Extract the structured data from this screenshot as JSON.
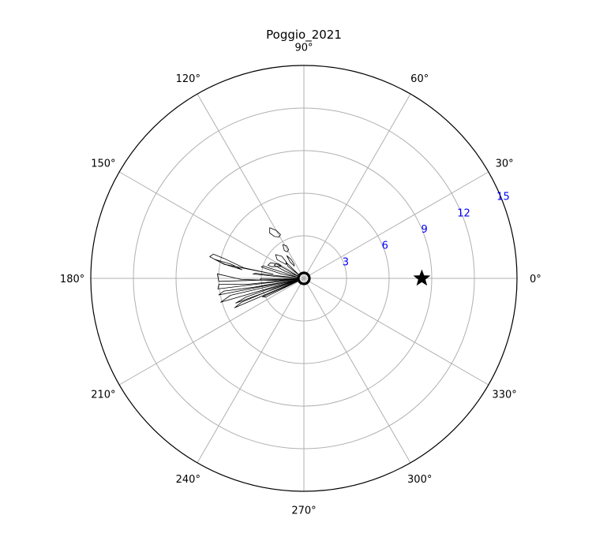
{
  "chart_data": {
    "type": "polar-contour",
    "title": "Poggio_2021",
    "angular_ticks": [
      0,
      30,
      60,
      90,
      120,
      150,
      180,
      210,
      240,
      270,
      300,
      330
    ],
    "angular_tick_labels": [
      "0°",
      "30°",
      "60°",
      "90°",
      "120°",
      "150°",
      "180°",
      "210°",
      "240°",
      "270°",
      "300°",
      "330°"
    ],
    "radial_ticks": [
      3,
      6,
      9,
      12,
      15
    ],
    "radial_tick_labels": [
      "3",
      "6",
      "9",
      "12",
      "15"
    ],
    "radial_label_angle_deg": 22.5,
    "radial_label_color": "#0000ff",
    "rlim": [
      0,
      15
    ],
    "grid": true,
    "markers": [
      {
        "shape": "star",
        "theta_deg": 0,
        "r": 8.3,
        "color": "#000000"
      },
      {
        "shape": "circle",
        "theta_deg": 0,
        "r": 0,
        "color": "#000000"
      }
    ],
    "contours": [
      {
        "name": "upper-lobe",
        "points": [
          [
            125,
            3.6
          ],
          [
            127,
            4.0
          ],
          [
            124,
            4.3
          ],
          [
            120,
            3.9
          ],
          [
            118,
            3.5
          ],
          [
            121,
            3.4
          ],
          [
            125,
            3.6
          ]
        ]
      },
      {
        "name": "lobe-small-1",
        "points": [
          [
            155,
            2.6
          ],
          [
            160,
            2.7
          ],
          [
            160,
            2.4
          ],
          [
            152,
            1.8
          ],
          [
            150,
            2.0
          ],
          [
            155,
            2.6
          ]
        ]
      },
      {
        "name": "lobe-small-2",
        "points": [
          [
            142,
            1.6
          ],
          [
            145,
            2.3
          ],
          [
            140,
            2.6
          ],
          [
            135,
            2.2
          ],
          [
            137,
            1.7
          ],
          [
            142,
            1.6
          ]
        ]
      },
      {
        "name": "lobe-small-3",
        "points": [
          [
            122,
            2.2
          ],
          [
            125,
            2.4
          ],
          [
            122,
            2.8
          ],
          [
            118,
            2.6
          ],
          [
            118,
            2.3
          ],
          [
            122,
            2.2
          ]
        ]
      },
      {
        "name": "lobe-small-4",
        "points": [
          [
            128,
            1.1
          ],
          [
            130,
            1.5
          ],
          [
            127,
            2.0
          ],
          [
            124,
            1.6
          ],
          [
            125,
            1.2
          ],
          [
            128,
            1.1
          ]
        ]
      },
      {
        "name": "mid-lobe",
        "points": [
          [
            172,
            2.2
          ],
          [
            170,
            5.7
          ],
          [
            167,
            6.8
          ],
          [
            165,
            6.6
          ],
          [
            166,
            5.8
          ],
          [
            170,
            4.3
          ],
          [
            172,
            2.2
          ]
        ]
      },
      {
        "name": "mid-lobe-inner",
        "points": [
          [
            172,
            4.4
          ],
          [
            170,
            5.6
          ],
          [
            168,
            6.4
          ],
          [
            169,
            5.2
          ],
          [
            172,
            4.4
          ]
        ]
      },
      {
        "name": "left-lobe-1",
        "points": [
          [
            186,
            0.5
          ],
          [
            182,
            6.0
          ],
          [
            177,
            6.1
          ],
          [
            181,
            4.4
          ],
          [
            185,
            1.8
          ],
          [
            186,
            0.5
          ]
        ]
      },
      {
        "name": "left-lobe-2",
        "points": [
          [
            188,
            0.4
          ],
          [
            187,
            6.1
          ],
          [
            184,
            6.0
          ],
          [
            186,
            4.0
          ],
          [
            188,
            0.4
          ]
        ]
      },
      {
        "name": "left-lobe-3",
        "points": [
          [
            191,
            0.4
          ],
          [
            191,
            6.1
          ],
          [
            189,
            5.7
          ],
          [
            190,
            3.6
          ],
          [
            191,
            0.4
          ]
        ]
      },
      {
        "name": "left-lobe-4",
        "points": [
          [
            194,
            0.4
          ],
          [
            196,
            6.1
          ],
          [
            193,
            5.3
          ],
          [
            193,
            3.0
          ],
          [
            194,
            0.4
          ]
        ]
      },
      {
        "name": "left-lobe-5",
        "points": [
          [
            198,
            0.4
          ],
          [
            200,
            5.1
          ],
          [
            198,
            4.3
          ],
          [
            197,
            2.8
          ],
          [
            198,
            0.4
          ]
        ]
      },
      {
        "name": "left-lobe-6",
        "points": [
          [
            200,
            0.4
          ],
          [
            203,
            5.3
          ],
          [
            201,
            4.7
          ],
          [
            199,
            2.2
          ],
          [
            200,
            0.4
          ]
        ]
      },
      {
        "name": "spike-1",
        "points": [
          [
            176,
            0.4
          ],
          [
            174,
            3.4
          ],
          [
            175,
            3.6
          ],
          [
            176,
            2.0
          ],
          [
            176,
            0.4
          ]
        ]
      },
      {
        "name": "spike-2",
        "points": [
          [
            170,
            0.4
          ],
          [
            163,
            3.0
          ],
          [
            165,
            3.1
          ],
          [
            169,
            1.6
          ],
          [
            170,
            0.4
          ]
        ]
      },
      {
        "name": "spike-3",
        "points": [
          [
            160,
            0.4
          ],
          [
            152,
            2.2
          ],
          [
            156,
            2.3
          ],
          [
            159,
            1.4
          ],
          [
            160,
            0.4
          ]
        ]
      },
      {
        "name": "spike-4",
        "points": [
          [
            145,
            0.4
          ],
          [
            138,
            1.7
          ],
          [
            143,
            1.4
          ],
          [
            145,
            0.4
          ]
        ]
      },
      {
        "name": "spike-5",
        "points": [
          [
            183,
            0.4
          ],
          [
            180,
            3.0
          ],
          [
            182,
            3.1
          ],
          [
            183,
            1.5
          ],
          [
            183,
            0.4
          ]
        ]
      },
      {
        "name": "spike-6",
        "points": [
          [
            205,
            0.4
          ],
          [
            206,
            3.0
          ],
          [
            204,
            3.2
          ],
          [
            205,
            0.4
          ]
        ]
      }
    ]
  }
}
